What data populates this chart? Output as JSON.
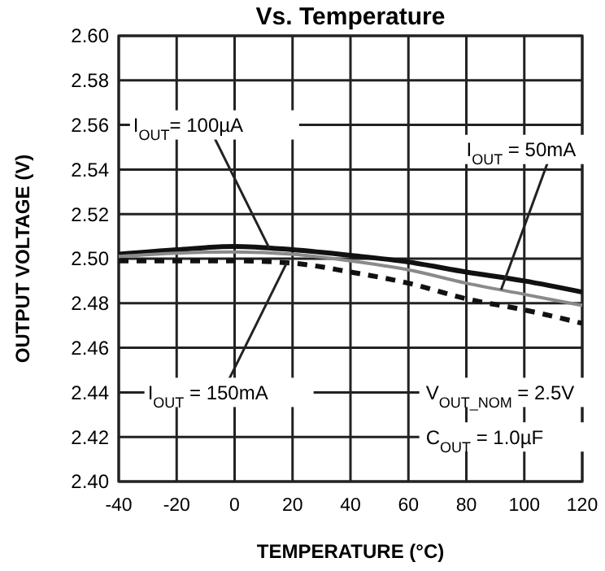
{
  "chart_data": {
    "type": "line",
    "title": "Vs. Temperature",
    "xlabel": "TEMPERATURE (°C)",
    "ylabel": "OUTPUT VOLTAGE (V)",
    "x": [
      -40,
      -20,
      0,
      20,
      40,
      60,
      80,
      100,
      120
    ],
    "series": [
      {
        "name": "I$_{OUT}$= 100µA",
        "color": "#111111",
        "values": [
          2.502,
          2.504,
          2.5055,
          2.504,
          2.5015,
          2.4985,
          2.494,
          2.49,
          2.485
        ]
      },
      {
        "name": "I$_{OUT}$ = 50mA",
        "color": "#8a8a8a",
        "values": [
          2.501,
          2.5025,
          2.503,
          2.502,
          2.499,
          2.495,
          2.489,
          2.484,
          2.479
        ]
      },
      {
        "name": "I$_{OUT}$ = 150mA",
        "color": "#111111",
        "line_style": "dashed",
        "values": [
          2.499,
          2.499,
          2.499,
          2.498,
          2.494,
          2.489,
          2.482,
          2.477,
          2.471
        ]
      }
    ],
    "xlim": [
      -40,
      120
    ],
    "xticks": [
      -40,
      -20,
      0,
      20,
      40,
      60,
      80,
      100,
      120
    ],
    "ylim": [
      2.4,
      2.6
    ],
    "yticks": [
      {
        "value": 2.4,
        "label": "2.40"
      },
      {
        "value": 2.42,
        "label": "2.42"
      },
      {
        "value": 2.44,
        "label": "2.44"
      },
      {
        "value": 2.46,
        "label": "2.46"
      },
      {
        "value": 2.48,
        "label": "2.48"
      },
      {
        "value": 2.5,
        "label": "2.50"
      },
      {
        "value": 2.52,
        "label": "2.52"
      },
      {
        "value": 2.54,
        "label": "2.54"
      },
      {
        "value": 2.56,
        "label": "2.56"
      },
      {
        "value": 2.58,
        "label": "2.58"
      },
      {
        "value": 2.6,
        "label": "2.60"
      }
    ],
    "grid": true,
    "annotations": [
      "V$_{OUT_NOM}$ = 2.5V",
      "C$_{OUT}$ = 1.0µF"
    ]
  }
}
